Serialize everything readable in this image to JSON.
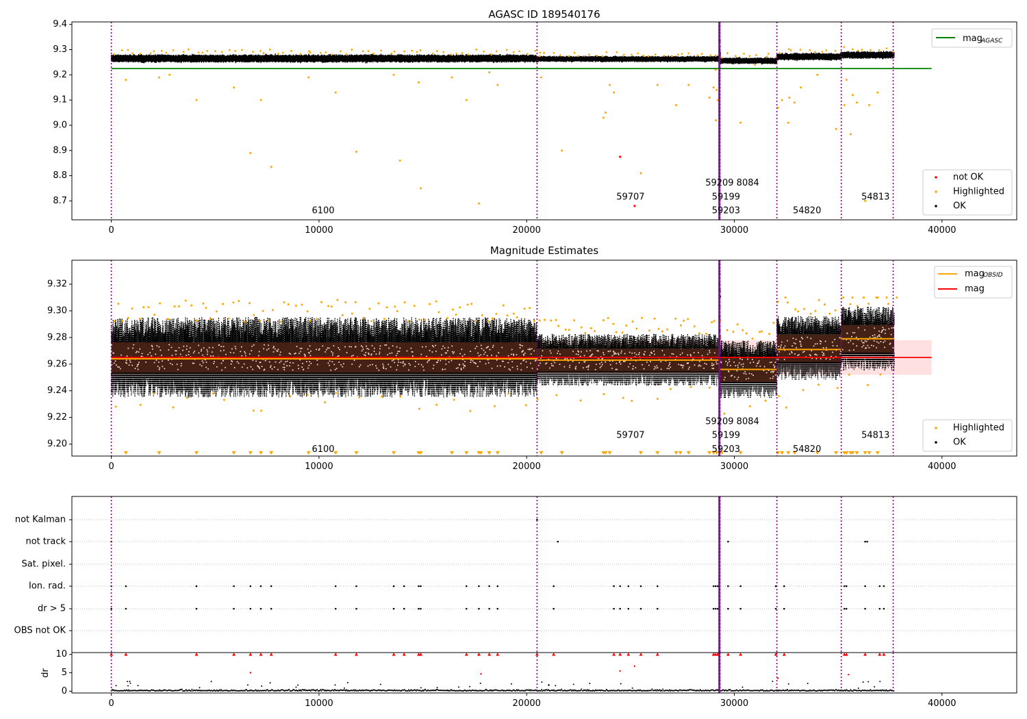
{
  "figure": {
    "title": "AGASC ID 189540176",
    "obsid_boundaries": [
      0,
      20500,
      29270,
      29310,
      32050,
      35150,
      37650
    ]
  },
  "chart_data": [
    {
      "type": "scatter",
      "title": "AGASC ID 189540176",
      "xlabel": "",
      "ylabel": "",
      "xlim": [
        -1900,
        43600
      ],
      "ylim": [
        8.625,
        9.41
      ],
      "xticks": [
        0,
        10000,
        20000,
        30000,
        40000
      ],
      "xtick_labels": [
        "0",
        "10000",
        "20000",
        "30000",
        "40000"
      ],
      "yticks": [
        8.7,
        8.8,
        8.9,
        9.0,
        9.1,
        9.2,
        9.3,
        9.4
      ],
      "ytick_labels": [
        "8.7",
        "8.8",
        "8.9",
        "9.0",
        "9.1",
        "9.2",
        "9.3",
        "9.4"
      ],
      "band_segments": [
        {
          "x0": 0,
          "x1": 20500,
          "center": 9.265,
          "half": 0.012
        },
        {
          "x0": 20500,
          "x1": 29300,
          "center": 9.263,
          "half": 0.009
        },
        {
          "x0": 29300,
          "x1": 32050,
          "center": 9.256,
          "half": 0.01
        },
        {
          "x0": 32050,
          "x1": 35150,
          "center": 9.272,
          "half": 0.011
        },
        {
          "x0": 35150,
          "x1": 37700,
          "center": 9.279,
          "half": 0.011
        }
      ],
      "lines": [
        {
          "name": "mag_AGASC",
          "color": "#008000",
          "y": 9.225,
          "x": [
            0,
            39500
          ]
        }
      ],
      "outliers_highlighted": [
        [
          700,
          9.18
        ],
        [
          2300,
          9.19
        ],
        [
          2800,
          9.2
        ],
        [
          4100,
          9.1
        ],
        [
          5900,
          9.15
        ],
        [
          6700,
          8.89
        ],
        [
          7200,
          9.1
        ],
        [
          7700,
          8.835
        ],
        [
          9500,
          9.19
        ],
        [
          10800,
          9.13
        ],
        [
          11800,
          8.895
        ],
        [
          13600,
          9.2
        ],
        [
          13900,
          8.86
        ],
        [
          14800,
          9.17
        ],
        [
          14900,
          8.75
        ],
        [
          16400,
          9.19
        ],
        [
          17100,
          9.1
        ],
        [
          17700,
          8.69
        ],
        [
          18200,
          9.21
        ],
        [
          18600,
          9.16
        ],
        [
          20700,
          9.19
        ],
        [
          21700,
          8.9
        ],
        [
          23700,
          9.03
        ],
        [
          23800,
          9.05
        ],
        [
          24000,
          9.16
        ],
        [
          24200,
          9.13
        ],
        [
          25500,
          8.81
        ],
        [
          26300,
          9.16
        ],
        [
          27200,
          9.08
        ],
        [
          27800,
          9.16
        ],
        [
          28800,
          9.11
        ],
        [
          29000,
          9.15
        ],
        [
          29100,
          9.22
        ],
        [
          29150,
          9.14
        ],
        [
          29200,
          9.1
        ],
        [
          29120,
          9.02
        ],
        [
          30300,
          9.01
        ],
        [
          32100,
          9.07
        ],
        [
          32300,
          9.1
        ],
        [
          32600,
          9.01
        ],
        [
          32650,
          9.11
        ],
        [
          32900,
          9.09
        ],
        [
          34000,
          9.2
        ],
        [
          34900,
          8.985
        ],
        [
          35300,
          9.08
        ],
        [
          35400,
          9.18
        ],
        [
          35600,
          8.965
        ],
        [
          35700,
          9.12
        ],
        [
          35900,
          9.09
        ],
        [
          36300,
          8.7
        ],
        [
          36500,
          9.08
        ],
        [
          36900,
          9.13
        ],
        [
          33200,
          9.15
        ],
        [
          31000,
          9.24
        ]
      ],
      "not_ok_points": [
        [
          24500,
          8.875
        ],
        [
          25200,
          8.68
        ]
      ],
      "annotations": [
        {
          "text": "6100",
          "x": 10200,
          "y": 8.66
        },
        {
          "text": "59707",
          "x": 25000,
          "y": 8.715
        },
        {
          "text": "59209 8084",
          "x": 29900,
          "y": 8.77
        },
        {
          "text": "59199",
          "x": 29600,
          "y": 8.715
        },
        {
          "text": "59203",
          "x": 29600,
          "y": 8.66
        },
        {
          "text": "54820",
          "x": 33500,
          "y": 8.66
        },
        {
          "text": "54813",
          "x": 36800,
          "y": 8.715
        }
      ],
      "legend_upper": {
        "placement": "upper right",
        "entries": [
          {
            "label": "mag",
            "sub": "AGASC",
            "color": "#008000"
          }
        ]
      },
      "legend_lower": {
        "placement": "lower right",
        "entries": [
          {
            "label": "not OK",
            "color": "#ff0000"
          },
          {
            "label": "Highlighted",
            "color": "#ffa500"
          },
          {
            "label": "OK",
            "color": "#000000"
          }
        ]
      }
    },
    {
      "type": "scatter",
      "title": "Magnitude Estimates",
      "xlabel": "",
      "ylabel": "",
      "xlim": [
        -1900,
        43600
      ],
      "ylim": [
        9.191,
        9.338
      ],
      "xticks": [
        0,
        10000,
        20000,
        30000,
        40000
      ],
      "xtick_labels": [
        "0",
        "10000",
        "20000",
        "30000",
        "40000"
      ],
      "yticks": [
        9.2,
        9.22,
        9.24,
        9.26,
        9.28,
        9.3,
        9.32
      ],
      "ytick_labels": [
        "9.20",
        "9.22",
        "9.24",
        "9.26",
        "9.28",
        "9.30",
        "9.32"
      ],
      "mag_band": {
        "center": 9.265,
        "low": 9.252,
        "high": 9.278,
        "x": [
          0,
          39500
        ]
      },
      "obsid_mean": [
        {
          "x0": 0,
          "x1": 20500,
          "mag": 9.264
        },
        {
          "x0": 20500,
          "x1": 29300,
          "mag": 9.263
        },
        {
          "x0": 29300,
          "x1": 32050,
          "mag": 9.256
        },
        {
          "x0": 32050,
          "x1": 35150,
          "mag": 9.271
        },
        {
          "x0": 35150,
          "x1": 37700,
          "mag": 9.279
        }
      ],
      "clipped_x": [
        700,
        2300,
        4100,
        5900,
        6700,
        7200,
        7700,
        9500,
        10800,
        11800,
        13600,
        14800,
        14900,
        16400,
        17100,
        17700,
        17800,
        18200,
        18600,
        20700,
        21700,
        23700,
        23800,
        24000,
        25500,
        26300,
        27200,
        27400,
        27800,
        28800,
        29000,
        29150,
        29400,
        30300,
        32100,
        32300,
        32600,
        32900,
        34000,
        34900,
        35300,
        35400,
        35600,
        35700,
        35900,
        36300,
        36500,
        36900
      ],
      "annotations": [
        {
          "text": "6100",
          "x": 10200,
          "y": 9.196
        },
        {
          "text": "59707",
          "x": 25000,
          "y": 9.2063
        },
        {
          "text": "59209 8084",
          "x": 29900,
          "y": 9.2166
        },
        {
          "text": "59199",
          "x": 29600,
          "y": 9.2063
        },
        {
          "text": "59203",
          "x": 29600,
          "y": 9.196
        },
        {
          "text": "54820",
          "x": 33500,
          "y": 9.196
        },
        {
          "text": "54813",
          "x": 36800,
          "y": 9.2063
        }
      ],
      "legend_upper": {
        "placement": "upper right",
        "entries": [
          {
            "label": "mag",
            "sub": "OBSID",
            "color": "#ffa500"
          },
          {
            "label": "mag",
            "sub": "",
            "color": "#ff0000"
          }
        ]
      },
      "legend_lower": {
        "placement": "lower right",
        "entries": [
          {
            "label": "Highlighted",
            "color": "#ffa500"
          },
          {
            "label": "OK",
            "color": "#000000"
          }
        ]
      }
    },
    {
      "type": "scatter",
      "title": "",
      "xlabel": "",
      "ylabel": "",
      "categories": [
        "OBS not OK",
        "dr > 5",
        "Ion. rad.",
        "Sat. pixel.",
        "not track",
        "not Kalman"
      ],
      "flag_x": {
        "dr > 5": [
          0,
          700,
          4100,
          5900,
          6700,
          7200,
          7700,
          10800,
          11800,
          13600,
          14100,
          14800,
          14900,
          17100,
          17700,
          18200,
          18600,
          21300,
          24200,
          24500,
          24900,
          25500,
          26300,
          29000,
          29100,
          29200,
          29700,
          30300,
          32000,
          32400,
          35300,
          35400,
          36300,
          37000,
          37200
        ],
        "Ion. rad.": [
          0,
          700,
          4100,
          5900,
          6700,
          7200,
          7700,
          10800,
          11800,
          13600,
          14100,
          14800,
          14900,
          17100,
          17700,
          18200,
          18600,
          21300,
          24200,
          24500,
          24900,
          25500,
          26300,
          29000,
          29100,
          29200,
          29700,
          30300,
          32000,
          32400,
          35300,
          35400,
          36300,
          37000,
          37200
        ],
        "not track": [
          0,
          21500,
          29700,
          36300,
          36400
        ],
        "not Kalman": [
          20500
        ]
      },
      "gridlines": "horizontal dotted",
      "xlim": [
        -1900,
        43600
      ]
    },
    {
      "type": "scatter",
      "title": "",
      "xlabel": "",
      "ylabel": "dr",
      "xlim": [
        -1900,
        43600
      ],
      "ylim": [
        -0.5,
        10.5
      ],
      "xticks": [
        0,
        10000,
        20000,
        30000,
        40000
      ],
      "xtick_labels": [
        "0",
        "10000",
        "20000",
        "30000",
        "40000"
      ],
      "yticks": [
        0,
        5,
        10
      ],
      "ytick_labels": [
        "0",
        "5",
        "10"
      ],
      "clipped_x": [
        0,
        700,
        4100,
        5900,
        6700,
        7200,
        7700,
        10800,
        11800,
        13600,
        14100,
        14800,
        14900,
        17100,
        17700,
        18200,
        18600,
        20500,
        21300,
        24200,
        24500,
        24900,
        25500,
        26300,
        29000,
        29100,
        29200,
        29700,
        30300,
        32000,
        32400,
        35300,
        35400,
        36300,
        37000,
        37200
      ],
      "red_points": [
        [
          6700,
          5
        ],
        [
          25200,
          6.8
        ],
        [
          24500,
          5.5
        ],
        [
          17800,
          4.7
        ],
        [
          32100,
          3.5
        ],
        [
          35500,
          4.5
        ]
      ]
    }
  ]
}
